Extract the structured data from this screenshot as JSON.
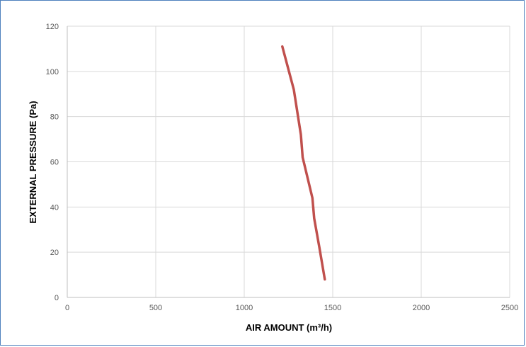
{
  "chart_data": {
    "type": "line",
    "title": "",
    "xlabel": "AIR AMOUNT  (m³/h)",
    "ylabel": "EXTERNAL PRESSURE  (Pa)",
    "xlim": [
      0,
      2500
    ],
    "ylim": [
      0,
      120
    ],
    "xticks": [
      0,
      500,
      1000,
      1500,
      2000,
      2500
    ],
    "yticks": [
      0,
      20,
      40,
      60,
      80,
      100,
      120
    ],
    "grid": true,
    "legend": "none",
    "series": [
      {
        "color": "#c0504d",
        "points": [
          {
            "x": 1215,
            "y": 111
          },
          {
            "x": 1280,
            "y": 92
          },
          {
            "x": 1320,
            "y": 72
          },
          {
            "x": 1330,
            "y": 62
          },
          {
            "x": 1385,
            "y": 44
          },
          {
            "x": 1395,
            "y": 35
          },
          {
            "x": 1425,
            "y": 22
          },
          {
            "x": 1455,
            "y": 8
          }
        ]
      }
    ]
  }
}
